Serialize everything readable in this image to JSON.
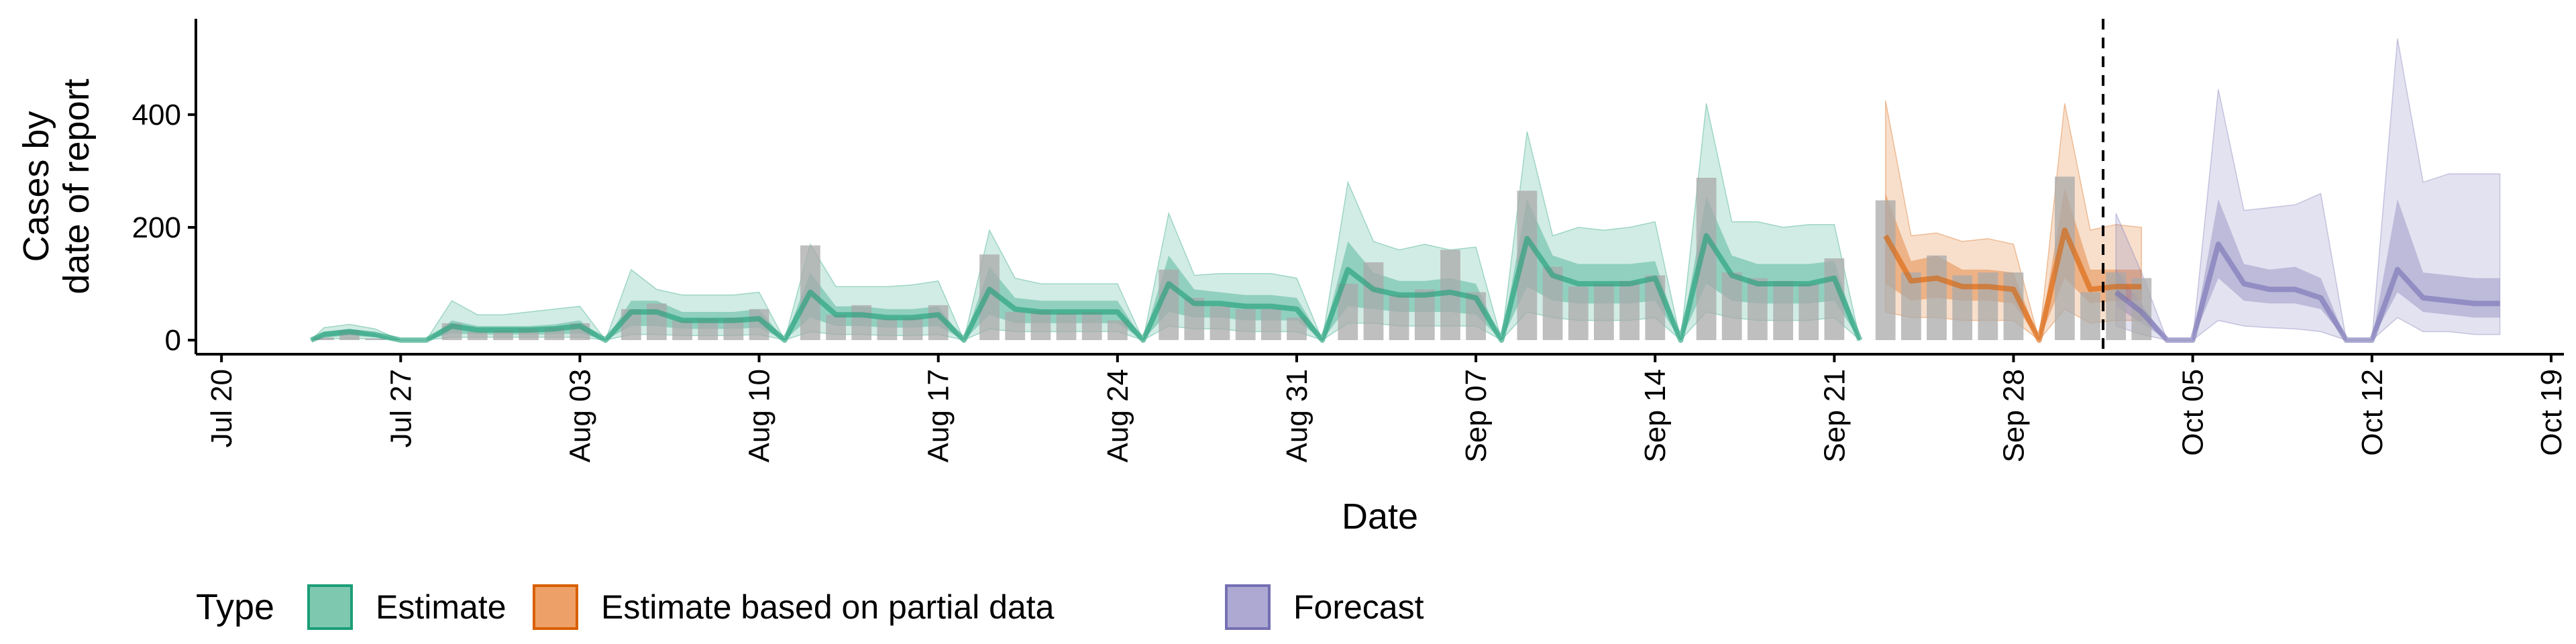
{
  "chart_data": {
    "type": "area",
    "xlabel": "Date",
    "ylabel_lines": [
      "Cases by",
      "date of report"
    ],
    "ylim": [
      -25,
      570
    ],
    "y_ticks": [
      0,
      200,
      400
    ],
    "x_ticks": [
      "Jul 20",
      "Jul 27",
      "Aug 03",
      "Aug 10",
      "Aug 17",
      "Aug 24",
      "Aug 31",
      "Sep 07",
      "Sep 14",
      "Sep 21",
      "Sep 28",
      "Oct 05",
      "Oct 12",
      "Oct 19"
    ],
    "x_start_label": "Jul 20",
    "x_range_days": [
      -1,
      91.5
    ],
    "forecast_start_day": 73.5,
    "legend": {
      "title": "Type",
      "position": "bottom",
      "entries": [
        {
          "label": "Estimate",
          "fill": "#7fc8b0",
          "stroke": "#1b9e77"
        },
        {
          "label": "Estimate based on partial data",
          "fill": "#eda068",
          "stroke": "#d95f02"
        },
        {
          "label": "Forecast",
          "fill": "#ada9d2",
          "stroke": "#7570b3"
        }
      ]
    },
    "colors": {
      "estimate": "#1b9e77",
      "partial": "#d95f02",
      "forecast": "#7570b3",
      "bars": "#a9a9a9"
    },
    "reported_cases": [
      {
        "day": 4,
        "value": 5
      },
      {
        "day": 5,
        "value": 18
      },
      {
        "day": 6,
        "value": 3
      },
      {
        "day": 7,
        "value": 0
      },
      {
        "day": 8,
        "value": 0
      },
      {
        "day": 9,
        "value": 30
      },
      {
        "day": 10,
        "value": 15
      },
      {
        "day": 11,
        "value": 18
      },
      {
        "day": 12,
        "value": 20
      },
      {
        "day": 13,
        "value": 22
      },
      {
        "day": 14,
        "value": 30
      },
      {
        "day": 15,
        "value": 0
      },
      {
        "day": 16,
        "value": 55
      },
      {
        "day": 17,
        "value": 65
      },
      {
        "day": 18,
        "value": 35
      },
      {
        "day": 19,
        "value": 38
      },
      {
        "day": 20,
        "value": 40
      },
      {
        "day": 21,
        "value": 55
      },
      {
        "day": 22,
        "value": 0
      },
      {
        "day": 23,
        "value": 168
      },
      {
        "day": 24,
        "value": 45
      },
      {
        "day": 25,
        "value": 62
      },
      {
        "day": 26,
        "value": 38
      },
      {
        "day": 27,
        "value": 40
      },
      {
        "day": 28,
        "value": 62
      },
      {
        "day": 29,
        "value": 0
      },
      {
        "day": 30,
        "value": 152
      },
      {
        "day": 31,
        "value": 50
      },
      {
        "day": 32,
        "value": 52
      },
      {
        "day": 33,
        "value": 48
      },
      {
        "day": 34,
        "value": 50
      },
      {
        "day": 35,
        "value": 35
      },
      {
        "day": 36,
        "value": 0
      },
      {
        "day": 37,
        "value": 125
      },
      {
        "day": 38,
        "value": 75
      },
      {
        "day": 39,
        "value": 60
      },
      {
        "day": 40,
        "value": 55
      },
      {
        "day": 41,
        "value": 55
      },
      {
        "day": 42,
        "value": 40
      },
      {
        "day": 43,
        "value": 0
      },
      {
        "day": 44,
        "value": 100
      },
      {
        "day": 45,
        "value": 138
      },
      {
        "day": 46,
        "value": 80
      },
      {
        "day": 47,
        "value": 90
      },
      {
        "day": 48,
        "value": 160
      },
      {
        "day": 49,
        "value": 85
      },
      {
        "day": 50,
        "value": 0
      },
      {
        "day": 51,
        "value": 265
      },
      {
        "day": 52,
        "value": 130
      },
      {
        "day": 53,
        "value": 95
      },
      {
        "day": 54,
        "value": 100
      },
      {
        "day": 55,
        "value": 105
      },
      {
        "day": 56,
        "value": 115
      },
      {
        "day": 57,
        "value": 0
      },
      {
        "day": 58,
        "value": 288
      },
      {
        "day": 59,
        "value": 120
      },
      {
        "day": 60,
        "value": 110
      },
      {
        "day": 61,
        "value": 105
      },
      {
        "day": 62,
        "value": 100
      },
      {
        "day": 63,
        "value": 145
      },
      {
        "day": 64,
        "value": 0
      },
      {
        "day": 65,
        "value": 248
      },
      {
        "day": 66,
        "value": 120
      },
      {
        "day": 67,
        "value": 150
      },
      {
        "day": 68,
        "value": 115
      },
      {
        "day": 69,
        "value": 120
      },
      {
        "day": 70,
        "value": 120
      },
      {
        "day": 71,
        "value": 0
      },
      {
        "day": 72,
        "value": 290
      },
      {
        "day": 73,
        "value": 85
      },
      {
        "day": 74,
        "value": 120
      },
      {
        "day": 75,
        "value": 110
      }
    ],
    "estimate": {
      "days": [
        3.5,
        4,
        5,
        6,
        7,
        8,
        9,
        10,
        11,
        12,
        13,
        14,
        15,
        16,
        17,
        18,
        19,
        20,
        21,
        22,
        23,
        24,
        25,
        26,
        27,
        28,
        29,
        30,
        31,
        32,
        33,
        34,
        35,
        36,
        37,
        38,
        39,
        40,
        41,
        42,
        43,
        44,
        45,
        46,
        47,
        48,
        49,
        50,
        51,
        52,
        53,
        54,
        55,
        56,
        57,
        58,
        59,
        60,
        61,
        62,
        63,
        64
      ],
      "lower90": [
        0,
        2,
        3,
        2,
        0,
        0,
        5,
        5,
        5,
        5,
        5,
        5,
        0,
        10,
        10,
        8,
        8,
        8,
        10,
        0,
        15,
        10,
        10,
        8,
        8,
        10,
        0,
        20,
        15,
        15,
        15,
        15,
        15,
        0,
        25,
        20,
        20,
        15,
        15,
        15,
        0,
        30,
        30,
        25,
        25,
        25,
        25,
        0,
        50,
        40,
        35,
        35,
        35,
        40,
        0,
        50,
        40,
        35,
        35,
        35,
        40,
        0
      ],
      "lower50": [
        0,
        5,
        8,
        5,
        0,
        0,
        12,
        10,
        10,
        10,
        10,
        12,
        0,
        25,
        25,
        20,
        20,
        20,
        22,
        0,
        40,
        25,
        25,
        22,
        22,
        25,
        0,
        45,
        30,
        30,
        30,
        30,
        30,
        0,
        50,
        40,
        40,
        35,
        35,
        35,
        0,
        60,
        55,
        50,
        50,
        50,
        45,
        0,
        95,
        70,
        65,
        65,
        65,
        70,
        0,
        100,
        70,
        65,
        65,
        65,
        70,
        0
      ],
      "median": [
        0,
        10,
        15,
        10,
        0,
        0,
        25,
        18,
        18,
        18,
        20,
        25,
        0,
        50,
        50,
        35,
        35,
        35,
        38,
        0,
        85,
        45,
        45,
        40,
        40,
        45,
        0,
        90,
        55,
        50,
        50,
        50,
        50,
        0,
        100,
        65,
        65,
        60,
        60,
        55,
        0,
        125,
        90,
        80,
        80,
        85,
        75,
        0,
        180,
        115,
        100,
        100,
        100,
        110,
        0,
        185,
        115,
        100,
        100,
        100,
        110,
        0
      ],
      "upper50": [
        0,
        15,
        20,
        12,
        0,
        0,
        35,
        25,
        25,
        25,
        28,
        35,
        0,
        70,
        70,
        50,
        50,
        50,
        55,
        0,
        120,
        60,
        60,
        55,
        55,
        60,
        0,
        130,
        75,
        70,
        70,
        70,
        70,
        0,
        150,
        90,
        85,
        80,
        80,
        75,
        0,
        175,
        120,
        105,
        105,
        110,
        100,
        0,
        250,
        150,
        135,
        135,
        135,
        140,
        0,
        255,
        150,
        135,
        135,
        135,
        140,
        0
      ],
      "upper90": [
        0,
        22,
        28,
        20,
        0,
        0,
        70,
        45,
        45,
        50,
        55,
        60,
        0,
        125,
        90,
        80,
        80,
        80,
        85,
        0,
        170,
        95,
        95,
        95,
        98,
        105,
        0,
        195,
        110,
        100,
        100,
        100,
        100,
        0,
        225,
        115,
        118,
        118,
        118,
        110,
        0,
        280,
        175,
        160,
        170,
        160,
        165,
        0,
        370,
        185,
        200,
        195,
        200,
        210,
        0,
        420,
        210,
        210,
        200,
        205,
        205,
        0
      ]
    },
    "partial": {
      "days": [
        65,
        66,
        67,
        68,
        69,
        70,
        71,
        72,
        73,
        74,
        75
      ],
      "lower90": [
        50,
        40,
        40,
        35,
        35,
        35,
        0,
        55,
        30,
        35,
        35
      ],
      "lower50": [
        100,
        70,
        75,
        70,
        70,
        65,
        0,
        110,
        65,
        70,
        70
      ],
      "median": [
        185,
        105,
        110,
        95,
        95,
        90,
        0,
        195,
        90,
        95,
        95
      ],
      "upper50": [
        260,
        140,
        150,
        125,
        125,
        120,
        0,
        270,
        125,
        125,
        125
      ],
      "upper90": [
        425,
        185,
        190,
        175,
        180,
        170,
        0,
        420,
        195,
        205,
        200
      ]
    },
    "forecast": {
      "days": [
        74,
        75,
        76,
        77,
        78,
        79,
        80,
        81,
        82,
        83,
        84,
        85,
        86,
        87,
        88,
        89
      ],
      "lower90": [
        25,
        10,
        0,
        0,
        35,
        25,
        22,
        20,
        15,
        0,
        0,
        40,
        15,
        15,
        10,
        10
      ],
      "lower50": [
        60,
        30,
        0,
        0,
        110,
        70,
        65,
        65,
        55,
        0,
        0,
        85,
        50,
        45,
        40,
        40
      ],
      "median": [
        85,
        50,
        0,
        0,
        170,
        100,
        90,
        90,
        75,
        0,
        0,
        125,
        75,
        70,
        65,
        65
      ],
      "upper50": [
        125,
        65,
        0,
        0,
        250,
        135,
        125,
        130,
        110,
        0,
        0,
        250,
        120,
        115,
        110,
        110
      ],
      "upper90": [
        225,
        120,
        0,
        0,
        445,
        230,
        235,
        240,
        260,
        0,
        0,
        535,
        280,
        295,
        295,
        295
      ]
    }
  }
}
